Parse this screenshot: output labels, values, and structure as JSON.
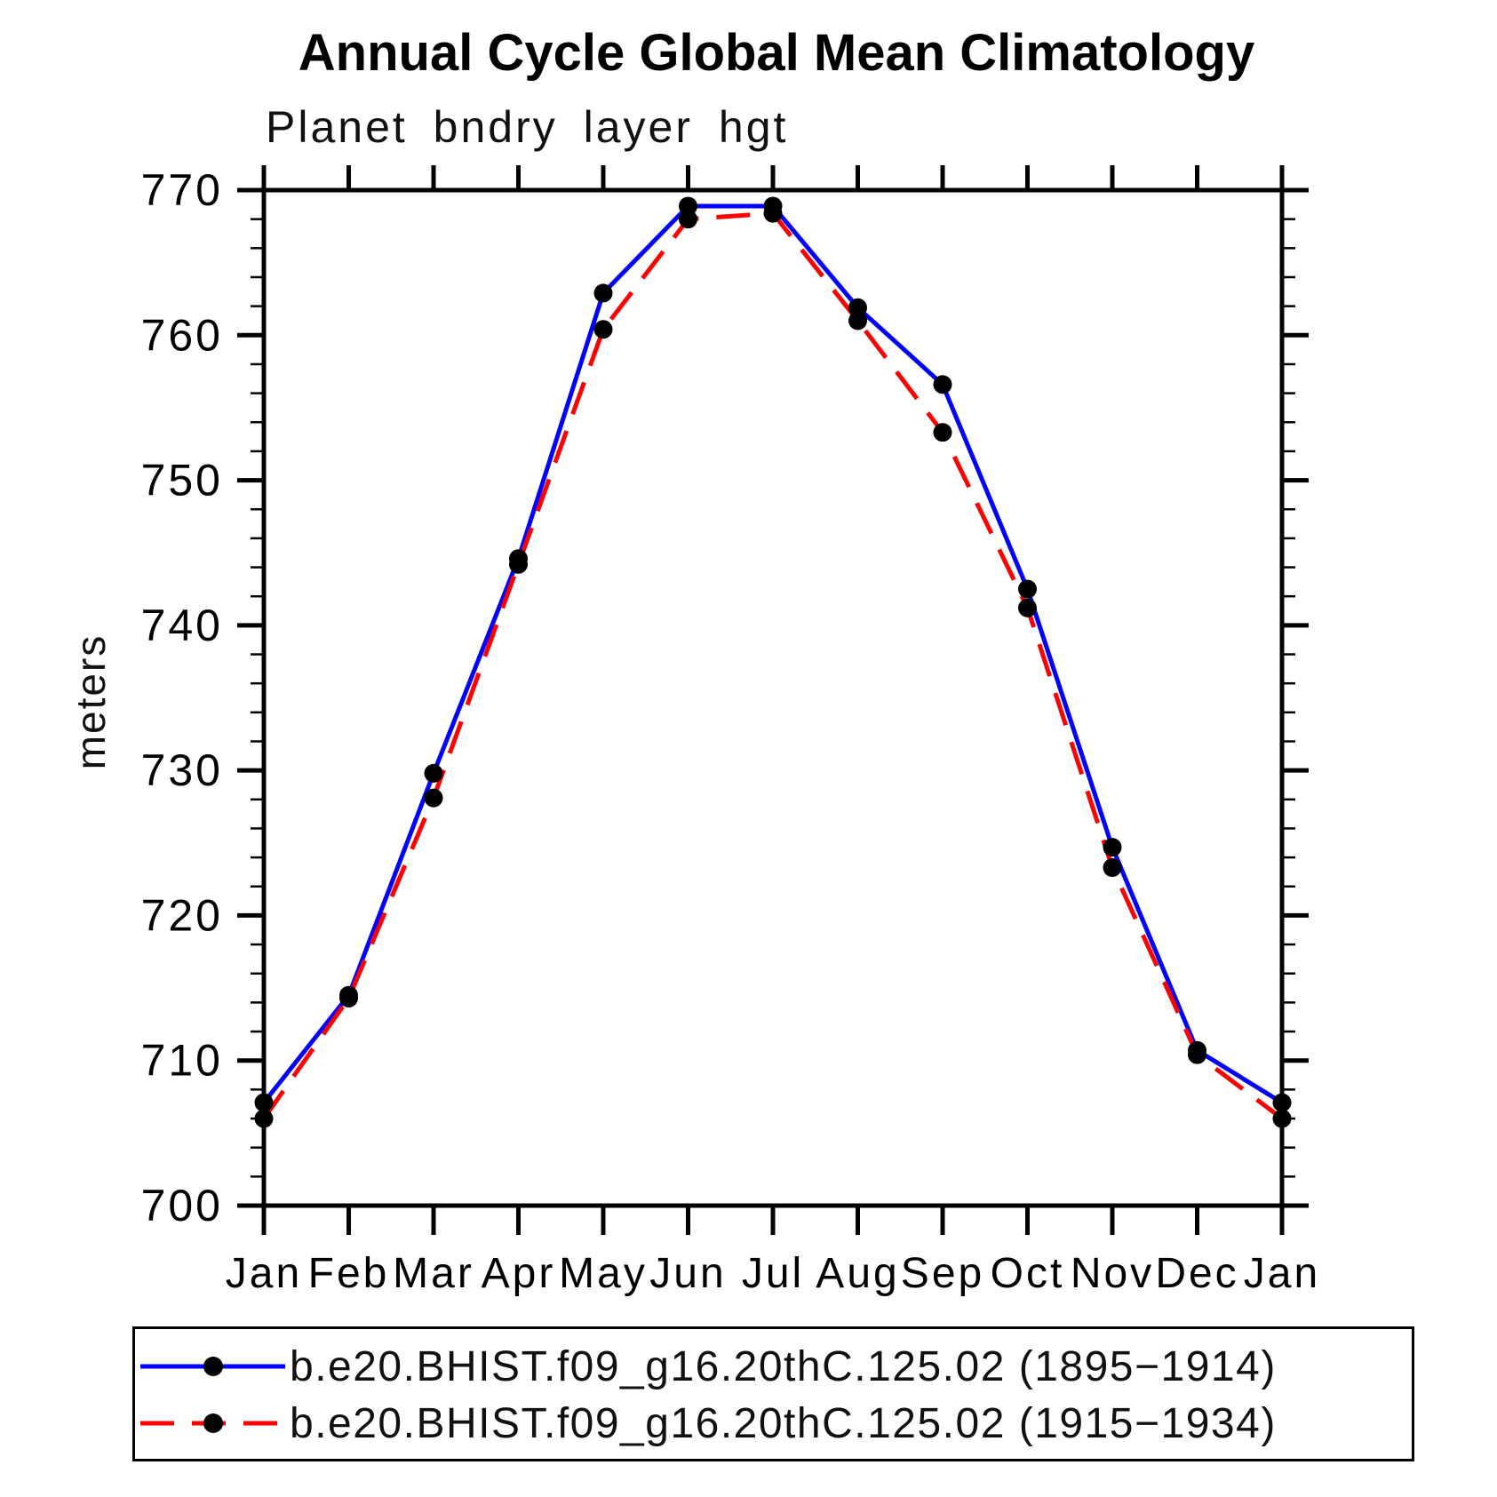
{
  "header": {
    "title": "Annual Cycle Global Mean Climatology",
    "subtitle": "Planet bndry layer hgt"
  },
  "chart_data": {
    "type": "line",
    "title": "Annual Cycle Global Mean Climatology",
    "subtitle": "Planet bndry layer hgt",
    "xlabel": "",
    "ylabel": "meters",
    "categories": [
      "Jan",
      "Feb",
      "Mar",
      "Apr",
      "May",
      "Jun",
      "Jul",
      "Aug",
      "Sep",
      "Oct",
      "Nov",
      "Dec",
      "Jan"
    ],
    "ylim": [
      700,
      770
    ],
    "ytick_interval_major": 10,
    "ytick_interval_minor": 2,
    "grid": false,
    "tick_direction": "out",
    "legend_position": "bottom",
    "axis_color": "#000000",
    "marker_color": "#000000",
    "series": [
      {
        "name": "b.e20.BHIST.f09_g16.20thC.125.02 (1895−1914)",
        "color": "#0000ff",
        "style": "solid",
        "marker": "circle",
        "values": [
          707.1,
          714.5,
          729.8,
          744.6,
          762.9,
          768.9,
          768.9,
          761.9,
          756.6,
          742.5,
          724.7,
          710.7,
          707.1
        ]
      },
      {
        "name": "b.e20.BHIST.f09_g16.20thC.125.02 (1915−1934)",
        "color": "#ff0000",
        "style": "dashed",
        "marker": "circle",
        "values": [
          706.0,
          714.3,
          728.1,
          744.2,
          760.4,
          768.0,
          768.4,
          761.0,
          753.3,
          741.2,
          723.3,
          710.4,
          706.0
        ]
      }
    ]
  }
}
